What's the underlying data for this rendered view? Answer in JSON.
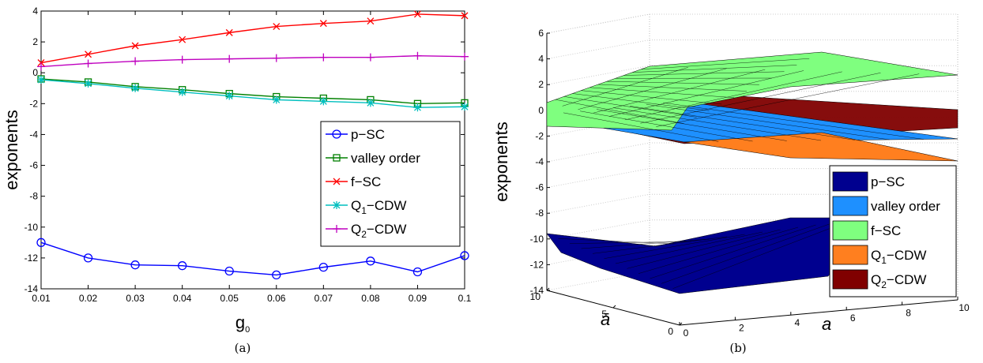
{
  "chart_data": [
    {
      "type": "line",
      "caption": "(a)",
      "xlabel": "g",
      "xlabel_sub": "0",
      "ylabel": "exponents",
      "xlim": [
        0.01,
        0.1
      ],
      "ylim": [
        -14,
        4
      ],
      "xticks": [
        "0.01",
        "0.02",
        "0.03",
        "0.04",
        "0.05",
        "0.06",
        "0.07",
        "0.08",
        "0.09",
        "0.1"
      ],
      "yticks": [
        "4",
        "2",
        "0",
        "-2",
        "-4",
        "-6",
        "-8",
        "-10",
        "-12",
        "-14"
      ],
      "x": [
        0.01,
        0.02,
        0.03,
        0.04,
        0.05,
        0.06,
        0.07,
        0.08,
        0.09,
        0.1
      ],
      "legend_position": "right",
      "series": [
        {
          "name": "p−SC",
          "color": "#0000ff",
          "marker": "circle",
          "values": [
            -11.0,
            -12.0,
            -12.45,
            -12.5,
            -12.85,
            -13.1,
            -12.6,
            -12.2,
            -12.9,
            -11.85
          ]
        },
        {
          "name": "valley order",
          "color": "#008000",
          "marker": "square",
          "values": [
            -0.4,
            -0.6,
            -0.9,
            -1.1,
            -1.35,
            -1.55,
            -1.65,
            -1.75,
            -2.0,
            -1.95
          ]
        },
        {
          "name": "f−SC",
          "color": "#ff0000",
          "marker": "x",
          "values": [
            0.65,
            1.2,
            1.75,
            2.15,
            2.6,
            3.0,
            3.2,
            3.35,
            3.8,
            3.7
          ]
        },
        {
          "name": "Q",
          "name_sub": "1",
          "name_rest": "−CDW",
          "color": "#00bfbf",
          "marker": "asterisk",
          "values": [
            -0.45,
            -0.7,
            -1.0,
            -1.25,
            -1.5,
            -1.75,
            -1.85,
            -1.95,
            -2.25,
            -2.2
          ]
        },
        {
          "name": "Q",
          "name_sub": "2",
          "name_rest": "−CDW",
          "color": "#bf00bf",
          "marker": "plus",
          "values": [
            0.4,
            0.6,
            0.75,
            0.85,
            0.9,
            0.95,
            1.0,
            1.0,
            1.1,
            1.05
          ]
        }
      ]
    },
    {
      "type": "surface3d",
      "caption": "(b)",
      "xlabel": "a",
      "ylabel": "ā",
      "zlabel": "exponents",
      "zticks": [
        "6",
        "4",
        "2",
        "0",
        "-2",
        "-4",
        "-6",
        "-8",
        "-10",
        "-12",
        "-14"
      ],
      "xticks": [
        "0",
        "2",
        "4",
        "6",
        "8",
        "10"
      ],
      "yticks": [
        "10",
        "5",
        "0"
      ],
      "legend_position": "bottom-right",
      "series": [
        {
          "name": "p−SC",
          "color": "#00008f"
        },
        {
          "name": "valley order",
          "color": "#1e90ff"
        },
        {
          "name": "f−SC",
          "color": "#7fff7f"
        },
        {
          "name": "Q",
          "name_sub": "1",
          "name_rest": "−CDW",
          "color": "#ff7f1f"
        },
        {
          "name": "Q",
          "name_sub": "2",
          "name_rest": "−CDW",
          "color": "#800000"
        }
      ]
    }
  ]
}
